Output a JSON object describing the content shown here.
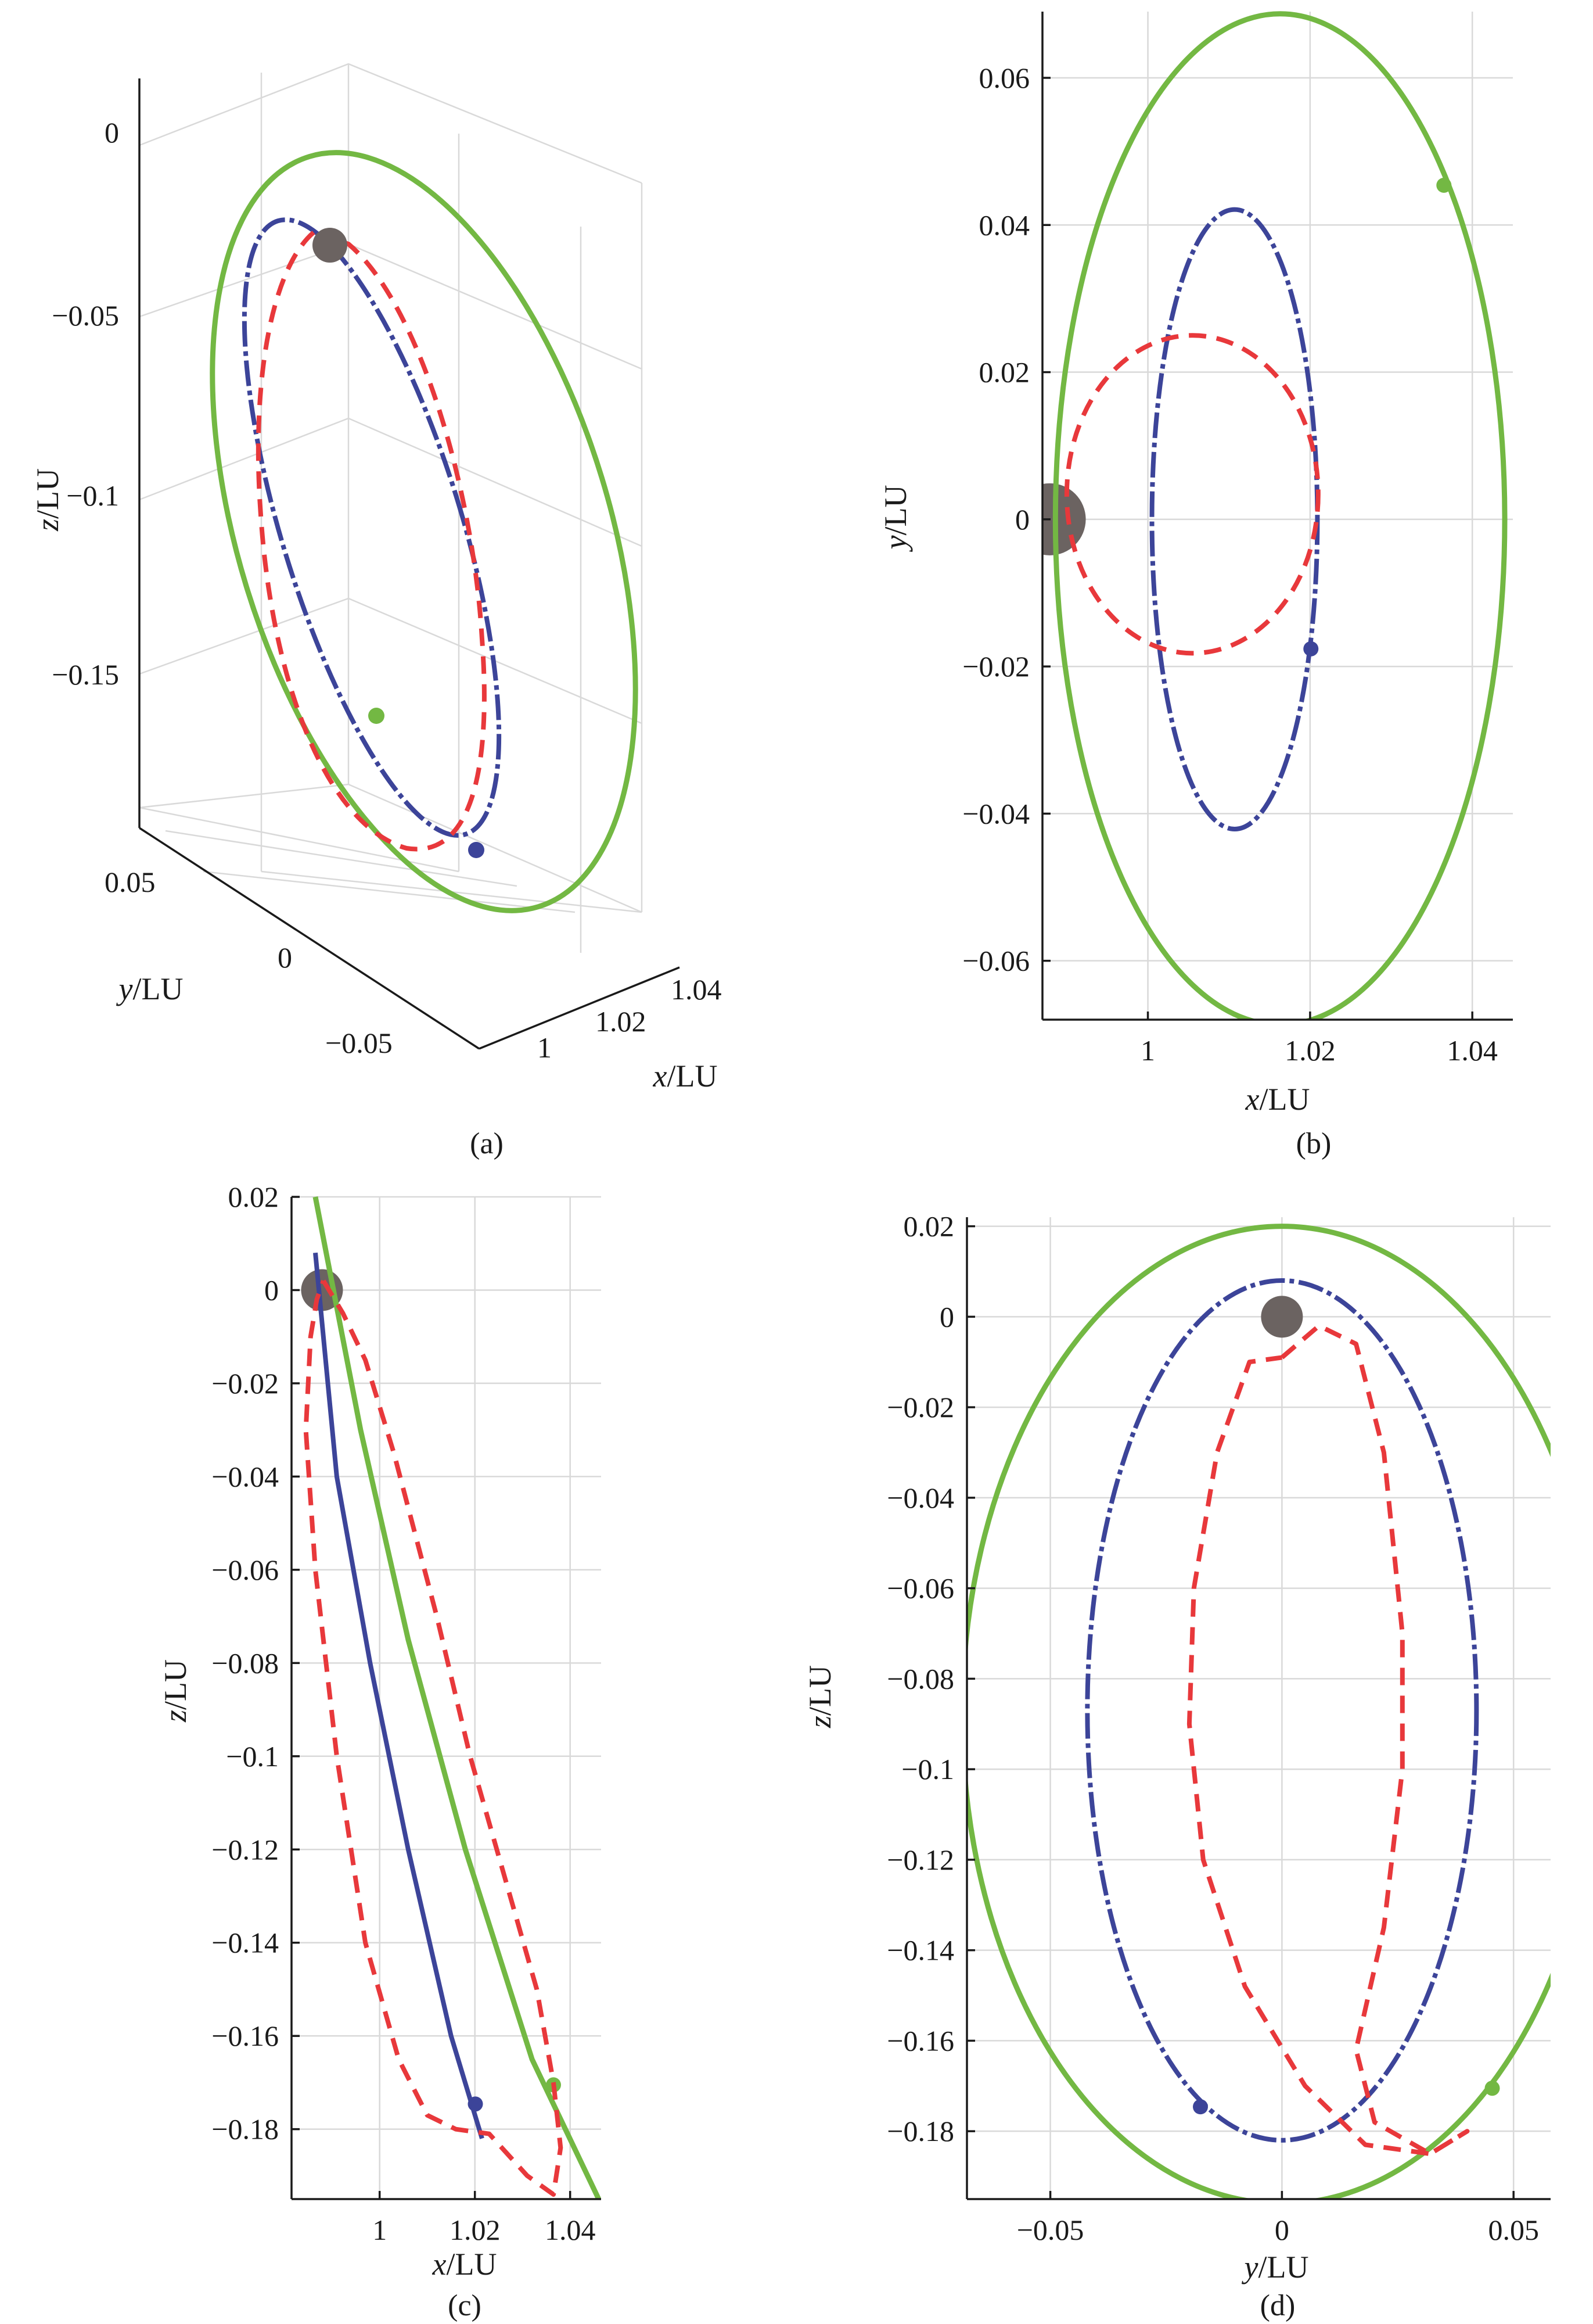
{
  "colors": {
    "green": "#73b843",
    "blue": "#3c4499",
    "red": "#e8383b",
    "body": "#6b6361"
  },
  "chart_data": [
    {
      "panel": "a",
      "type": "line3d",
      "caption": "(a)",
      "xlabel": {
        "var": "x",
        "unit": "/LU"
      },
      "ylabel": {
        "var": "y",
        "unit": "/LU"
      },
      "zlabel": {
        "var": "z",
        "unit": "/LU"
      },
      "xticks": [
        "1",
        "1.02",
        "1.04"
      ],
      "yticks": [
        "0.05",
        "0",
        "−0.05"
      ],
      "zticks": [
        "0",
        "−0.05",
        "−0.1",
        "−0.15"
      ]
    },
    {
      "panel": "b",
      "type": "line",
      "caption": "(b)",
      "xlabel": {
        "var": "x",
        "unit": "/LU"
      },
      "ylabel": {
        "var": "y",
        "unit": "/LU"
      },
      "xlim": [
        0.987,
        1.045
      ],
      "ylim": [
        -0.068,
        0.069
      ],
      "xticks": [
        {
          "v": 1,
          "t": "1"
        },
        {
          "v": 1.02,
          "t": "1.02"
        },
        {
          "v": 1.04,
          "t": "1.04"
        }
      ],
      "yticks": [
        {
          "v": 0.06,
          "t": "0.06"
        },
        {
          "v": 0.04,
          "t": "0.04"
        },
        {
          "v": 0.02,
          "t": "0.02"
        },
        {
          "v": 0,
          "t": "0"
        },
        {
          "v": -0.02,
          "t": "−0.02"
        },
        {
          "v": -0.04,
          "t": "−0.04"
        },
        {
          "v": -0.06,
          "t": "−0.06"
        }
      ],
      "body": {
        "x": 0.9879,
        "y": 0.0
      },
      "series": [
        {
          "color": "green",
          "style": "solid",
          "ellipse": {
            "cx": 1.0163,
            "cy": 0.0,
            "rx": 0.0277,
            "ry": 0.0687
          },
          "marker": {
            "x": 1.0365,
            "y": 0.0454
          }
        },
        {
          "color": "blue",
          "style": "dashdot",
          "ellipse": {
            "cx": 1.0107,
            "cy": 0.0,
            "rx": 0.0102,
            "ry": 0.0421
          },
          "marker": {
            "x": 1.0201,
            "y": -0.0176
          }
        },
        {
          "color": "red",
          "style": "dashed",
          "ellipse": {
            "cx": 1.0055,
            "cy": 0.0034,
            "rx": 0.0155,
            "ry": 0.0216
          }
        }
      ]
    },
    {
      "panel": "c",
      "type": "line",
      "caption": "(c)",
      "xlabel": {
        "var": "x",
        "unit": "/LU"
      },
      "ylabel": {
        "var": "z",
        "unit": "/LU"
      },
      "xlim": [
        0.9815,
        1.0465
      ],
      "ylim": [
        -0.195,
        0.02
      ],
      "xticks": [
        {
          "v": 1,
          "t": "1"
        },
        {
          "v": 1.02,
          "t": "1.02"
        },
        {
          "v": 1.04,
          "t": "1.04"
        }
      ],
      "yticks": [
        {
          "v": 0.02,
          "t": "0.02"
        },
        {
          "v": 0,
          "t": "0"
        },
        {
          "v": -0.02,
          "t": "−0.02"
        },
        {
          "v": -0.04,
          "t": "−0.04"
        },
        {
          "v": -0.06,
          "t": "−0.06"
        },
        {
          "v": -0.08,
          "t": "−0.08"
        },
        {
          "v": -0.1,
          "t": "−0.1"
        },
        {
          "v": -0.12,
          "t": "−0.12"
        },
        {
          "v": -0.14,
          "t": "−0.14"
        },
        {
          "v": -0.16,
          "t": "−0.16"
        },
        {
          "v": -0.18,
          "t": "−0.18"
        }
      ],
      "body": {
        "x": 0.9879,
        "y": 0.0
      },
      "series": [
        {
          "color": "green",
          "style": "solid",
          "points": [
            [
              0.9865,
              0.02
            ],
            [
              0.996,
              -0.03
            ],
            [
              1.006,
              -0.075
            ],
            [
              1.018,
              -0.12
            ],
            [
              1.032,
              -0.165
            ],
            [
              1.046,
              -0.195
            ]
          ],
          "marker": {
            "x": 1.0365,
            "y": -0.1705
          }
        },
        {
          "color": "blue",
          "style": "solid",
          "points": [
            [
              0.9865,
              0.008
            ],
            [
              0.991,
              -0.04
            ],
            [
              0.998,
              -0.08
            ],
            [
              1.006,
              -0.12
            ],
            [
              1.015,
              -0.16
            ],
            [
              1.0215,
              -0.182
            ]
          ],
          "marker": {
            "x": 1.0201,
            "y": -0.1746
          }
        },
        {
          "color": "red",
          "style": "dashed",
          "points": [
            [
              0.9882,
              0.002
            ],
            [
              0.9923,
              -0.005
            ],
            [
              0.997,
              -0.015
            ],
            [
              1.003,
              -0.035
            ],
            [
              1.012,
              -0.07
            ],
            [
              1.019,
              -0.1
            ],
            [
              1.026,
              -0.125
            ],
            [
              1.033,
              -0.15
            ],
            [
              1.0365,
              -0.17
            ],
            [
              1.038,
              -0.184
            ],
            [
              1.0365,
              -0.194
            ],
            [
              1.031,
              -0.19
            ],
            [
              1.023,
              -0.181
            ],
            [
              1.016,
              -0.18
            ],
            [
              1.01,
              -0.177
            ],
            [
              1.004,
              -0.165
            ],
            [
              0.997,
              -0.14
            ],
            [
              0.991,
              -0.1
            ],
            [
              0.9865,
              -0.06
            ],
            [
              0.9845,
              -0.03
            ],
            [
              0.9855,
              -0.01
            ],
            [
              0.9868,
              -0.002
            ],
            [
              0.9882,
              0.002
            ]
          ]
        }
      ]
    },
    {
      "panel": "d",
      "type": "line",
      "caption": "(d)",
      "xlabel": {
        "var": "y",
        "unit": "/LU"
      },
      "ylabel": {
        "var": "z",
        "unit": "/LU"
      },
      "xlim": [
        -0.068,
        0.058
      ],
      "ylim": [
        -0.195,
        0.022
      ],
      "xticks": [
        {
          "v": -0.05,
          "t": "−0.05"
        },
        {
          "v": 0,
          "t": "0"
        },
        {
          "v": 0.05,
          "t": "0.05"
        }
      ],
      "yticks": [
        {
          "v": 0.02,
          "t": "0.02"
        },
        {
          "v": 0,
          "t": "0"
        },
        {
          "v": -0.02,
          "t": "−0.02"
        },
        {
          "v": -0.04,
          "t": "−0.04"
        },
        {
          "v": -0.06,
          "t": "−0.06"
        },
        {
          "v": -0.08,
          "t": "−0.08"
        },
        {
          "v": -0.1,
          "t": "−0.1"
        },
        {
          "v": -0.12,
          "t": "−0.12"
        },
        {
          "v": -0.14,
          "t": "−0.14"
        },
        {
          "v": -0.16,
          "t": "−0.16"
        },
        {
          "v": -0.18,
          "t": "−0.18"
        }
      ],
      "body": {
        "x": 0.0,
        "y": 0.0
      },
      "series": [
        {
          "color": "green",
          "style": "solid",
          "ellipse": {
            "cx": 0.0,
            "cy": -0.088,
            "rx": 0.069,
            "ry": 0.108
          },
          "marker": {
            "x": 0.0454,
            "y": -0.1705
          }
        },
        {
          "color": "blue",
          "style": "dashdot",
          "ellipse": {
            "cx": 0.0,
            "cy": -0.087,
            "rx": 0.042,
            "ry": 0.095
          },
          "marker": {
            "x": -0.0176,
            "y": -0.1746
          }
        },
        {
          "color": "red",
          "style": "dashed",
          "points": [
            [
              0.0,
              -0.009
            ],
            [
              0.008,
              -0.002
            ],
            [
              0.016,
              -0.006
            ],
            [
              0.022,
              -0.03
            ],
            [
              0.026,
              -0.07
            ],
            [
              0.026,
              -0.1
            ],
            [
              0.022,
              -0.135
            ],
            [
              0.016,
              -0.162
            ],
            [
              0.02,
              -0.178
            ],
            [
              0.032,
              -0.185
            ],
            [
              0.04,
              -0.18
            ],
            [
              0.032,
              -0.185
            ],
            [
              0.018,
              -0.183
            ],
            [
              0.005,
              -0.17
            ],
            [
              -0.008,
              -0.148
            ],
            [
              -0.017,
              -0.12
            ],
            [
              -0.02,
              -0.09
            ],
            [
              -0.019,
              -0.06
            ],
            [
              -0.014,
              -0.03
            ],
            [
              -0.007,
              -0.01
            ],
            [
              0.0,
              -0.009
            ]
          ]
        }
      ]
    }
  ]
}
